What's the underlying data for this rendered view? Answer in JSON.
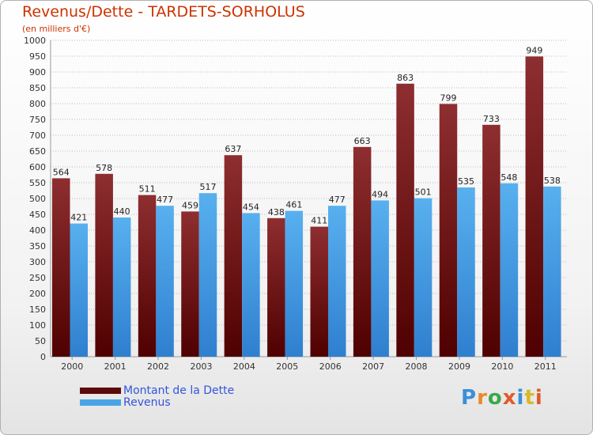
{
  "header": {
    "title": "Revenus/Dette - TARDETS-SORHOLUS",
    "subtitle": "(en milliers d'€)"
  },
  "legend": {
    "dette_label": "Montant de la Dette",
    "revenus_label": "Revenus"
  },
  "logo": {
    "text": "Proxiti"
  },
  "colors": {
    "dette": "#7a1a1c",
    "revenus": "#4aa3e6",
    "grid": "#bbbbbb",
    "title": "#cc3300",
    "legend_text": "#3355dd"
  },
  "chart_data": {
    "type": "bar",
    "title": "Revenus/Dette - TARDETS-SORHOLUS",
    "ylabel": "(en milliers d'€)",
    "xlabel": "",
    "categories": [
      "2000",
      "2001",
      "2002",
      "2003",
      "2004",
      "2005",
      "2006",
      "2007",
      "2008",
      "2009",
      "2010",
      "2011"
    ],
    "series": [
      {
        "name": "Montant de la Dette",
        "values": [
          564,
          578,
          511,
          459,
          637,
          438,
          411,
          663,
          863,
          799,
          733,
          949
        ]
      },
      {
        "name": "Revenus",
        "values": [
          421,
          440,
          477,
          517,
          454,
          461,
          477,
          494,
          501,
          535,
          548,
          538
        ]
      }
    ],
    "ylim": [
      0,
      1000
    ],
    "ytick_step": 50,
    "grid": true,
    "legend_position": "bottom-left"
  }
}
